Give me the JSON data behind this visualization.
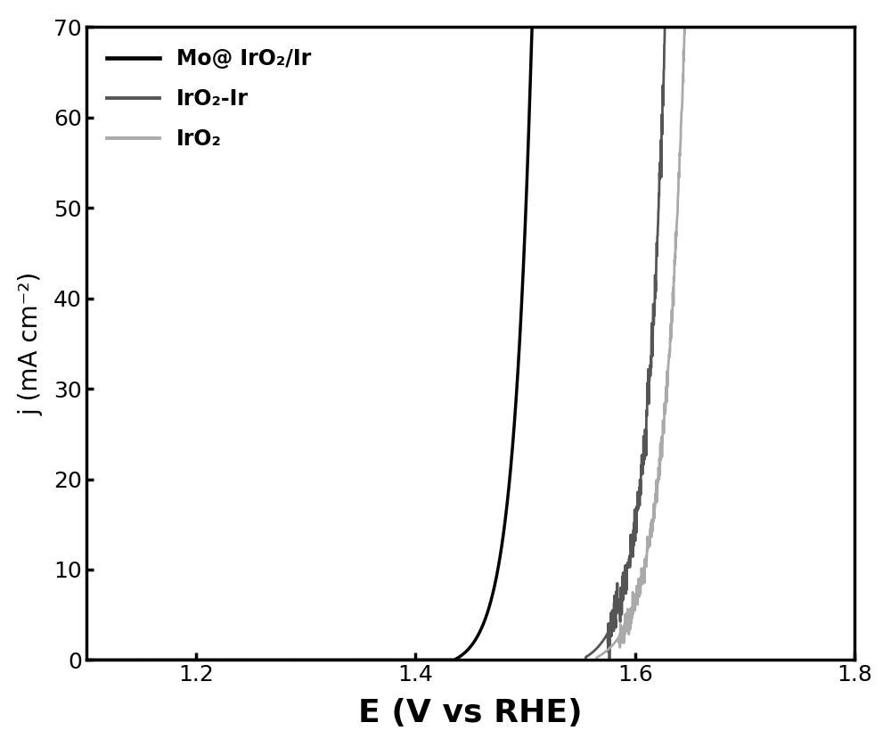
{
  "title": "",
  "xlabel": "E (V vs RHE)",
  "ylabel": "j (mA cm⁻²)",
  "xlim": [
    1.1,
    1.8
  ],
  "ylim": [
    0,
    70
  ],
  "xticks": [
    1.2,
    1.4,
    1.6,
    1.8
  ],
  "yticks": [
    0,
    10,
    20,
    30,
    40,
    50,
    60,
    70
  ],
  "series": [
    {
      "label": "Mo@ IrO₂/Ir",
      "color": "#000000",
      "linewidth": 2.5,
      "onset": 1.43,
      "alpha_exp": 60.0,
      "x_ref": 1.435,
      "noise_scale": 0.0,
      "noise_onset": 1.55
    },
    {
      "label": "IrO₂-Ir",
      "color": "#555555",
      "linewidth": 2.0,
      "onset": 1.555,
      "alpha_exp": 55.0,
      "x_ref": 1.55,
      "noise_scale": 1.2,
      "noise_onset": 1.575
    },
    {
      "label": "IrO₂",
      "color": "#aaaaaa",
      "linewidth": 2.0,
      "onset": 1.565,
      "alpha_exp": 50.0,
      "x_ref": 1.56,
      "noise_scale": 0.8,
      "noise_onset": 1.585
    }
  ],
  "legend_loc": "upper left",
  "background_color": "#ffffff",
  "xlabel_fontsize": 26,
  "ylabel_fontsize": 20,
  "tick_fontsize": 18,
  "legend_fontsize": 17,
  "xlabel_fontweight": "bold",
  "linewidth_axes": 2.5
}
